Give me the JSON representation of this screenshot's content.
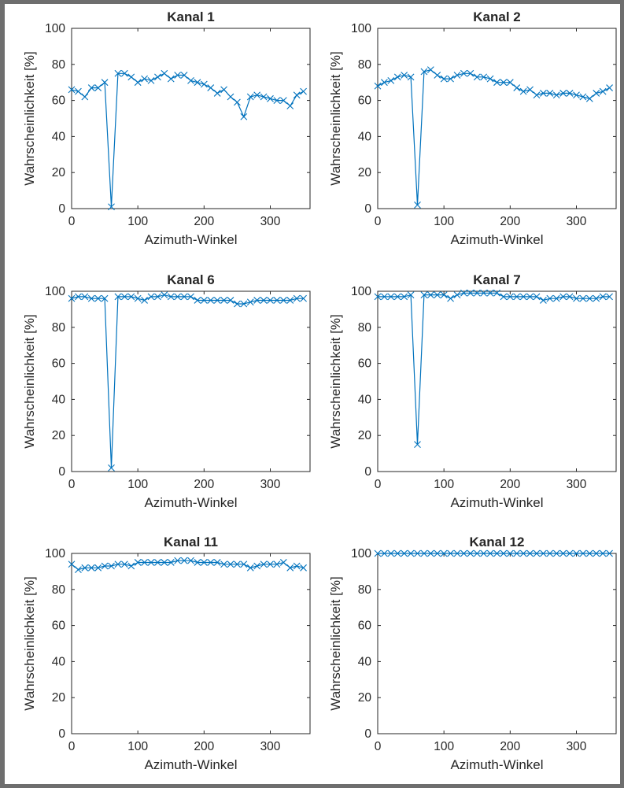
{
  "chart_data": [
    {
      "type": "line",
      "title": "Kanal 1",
      "xlabel": "Azimuth-Winkel",
      "ylabel": "Wahrscheinlichkeit [%]",
      "xlim": [
        0,
        360
      ],
      "ylim": [
        0,
        100
      ],
      "xticks": [
        0,
        100,
        200,
        300
      ],
      "yticks": [
        0,
        20,
        40,
        60,
        80,
        100
      ],
      "grid": false,
      "marker": "x",
      "color": "#0072bd",
      "x": [
        0,
        10,
        20,
        30,
        40,
        50,
        60,
        70,
        80,
        90,
        100,
        110,
        120,
        130,
        140,
        150,
        160,
        170,
        180,
        190,
        200,
        210,
        220,
        230,
        240,
        250,
        260,
        270,
        280,
        290,
        300,
        310,
        320,
        330,
        340,
        350
      ],
      "y": [
        66,
        65,
        62,
        67,
        67,
        70,
        1,
        75,
        75,
        73,
        70,
        72,
        71,
        73,
        75,
        72,
        74,
        74,
        71,
        70,
        69,
        67,
        64,
        66,
        62,
        59,
        51,
        62,
        63,
        62,
        61,
        60,
        60,
        57,
        63,
        65
      ]
    },
    {
      "type": "line",
      "title": "Kanal 2",
      "xlabel": "Azimuth-Winkel",
      "ylabel": "Wahrscheinlichkeit [%]",
      "xlim": [
        0,
        360
      ],
      "ylim": [
        0,
        100
      ],
      "xticks": [
        0,
        100,
        200,
        300
      ],
      "yticks": [
        0,
        20,
        40,
        60,
        80,
        100
      ],
      "grid": false,
      "marker": "x",
      "color": "#0072bd",
      "x": [
        0,
        10,
        20,
        30,
        40,
        50,
        60,
        70,
        80,
        90,
        100,
        110,
        120,
        130,
        140,
        150,
        160,
        170,
        180,
        190,
        200,
        210,
        220,
        230,
        240,
        250,
        260,
        270,
        280,
        290,
        300,
        310,
        320,
        330,
        340,
        350
      ],
      "y": [
        68,
        70,
        71,
        73,
        74,
        73,
        2,
        76,
        77,
        74,
        72,
        72,
        74,
        75,
        75,
        73,
        73,
        72,
        70,
        70,
        70,
        67,
        65,
        66,
        63,
        64,
        64,
        63,
        64,
        64,
        63,
        62,
        61,
        64,
        65,
        67
      ]
    },
    {
      "type": "line",
      "title": "Kanal 6",
      "xlabel": "Azimuth-Winkel",
      "ylabel": "Wahrscheinlichkeit [%]",
      "xlim": [
        0,
        360
      ],
      "ylim": [
        0,
        100
      ],
      "xticks": [
        0,
        100,
        200,
        300
      ],
      "yticks": [
        0,
        20,
        40,
        60,
        80,
        100
      ],
      "grid": false,
      "marker": "x",
      "color": "#0072bd",
      "x": [
        0,
        10,
        20,
        30,
        40,
        50,
        60,
        70,
        80,
        90,
        100,
        110,
        120,
        130,
        140,
        150,
        160,
        170,
        180,
        190,
        200,
        210,
        220,
        230,
        240,
        250,
        260,
        270,
        280,
        290,
        300,
        310,
        320,
        330,
        340,
        350
      ],
      "y": [
        96,
        97,
        97,
        96,
        96,
        96,
        2,
        97,
        97,
        97,
        96,
        95,
        97,
        97,
        98,
        97,
        97,
        97,
        97,
        95,
        95,
        95,
        95,
        95,
        95,
        93,
        93,
        94,
        95,
        95,
        95,
        95,
        95,
        95,
        96,
        96
      ]
    },
    {
      "type": "line",
      "title": "Kanal 7",
      "xlabel": "Azimuth-Winkel",
      "ylabel": "Wahrscheinlichkeit [%]",
      "xlim": [
        0,
        360
      ],
      "ylim": [
        0,
        100
      ],
      "xticks": [
        0,
        100,
        200,
        300
      ],
      "yticks": [
        0,
        20,
        40,
        60,
        80,
        100
      ],
      "grid": false,
      "marker": "x",
      "color": "#0072bd",
      "x": [
        0,
        10,
        20,
        30,
        40,
        50,
        60,
        70,
        80,
        90,
        100,
        110,
        120,
        130,
        140,
        150,
        160,
        170,
        180,
        190,
        200,
        210,
        220,
        230,
        240,
        250,
        260,
        270,
        280,
        290,
        300,
        310,
        320,
        330,
        340,
        350
      ],
      "y": [
        97,
        97,
        97,
        97,
        97,
        98,
        15,
        98,
        98,
        98,
        98,
        96,
        98,
        99,
        99,
        99,
        99,
        99,
        99,
        97,
        97,
        97,
        97,
        97,
        97,
        95,
        96,
        96,
        97,
        97,
        96,
        96,
        96,
        96,
        97,
        97
      ]
    },
    {
      "type": "line",
      "title": "Kanal 11",
      "xlabel": "Azimuth-Winkel",
      "ylabel": "Wahrscheinlichkeit [%]",
      "xlim": [
        0,
        360
      ],
      "ylim": [
        0,
        100
      ],
      "xticks": [
        0,
        100,
        200,
        300
      ],
      "yticks": [
        0,
        20,
        40,
        60,
        80,
        100
      ],
      "grid": false,
      "marker": "x",
      "color": "#0072bd",
      "x": [
        0,
        10,
        20,
        30,
        40,
        50,
        60,
        70,
        80,
        90,
        100,
        110,
        120,
        130,
        140,
        150,
        160,
        170,
        180,
        190,
        200,
        210,
        220,
        230,
        240,
        250,
        260,
        270,
        280,
        290,
        300,
        310,
        320,
        330,
        340,
        350
      ],
      "y": [
        94,
        91,
        92,
        92,
        92,
        93,
        93,
        94,
        94,
        93,
        95,
        95,
        95,
        95,
        95,
        95,
        96,
        96,
        96,
        95,
        95,
        95,
        95,
        94,
        94,
        94,
        94,
        92,
        93,
        94,
        94,
        94,
        95,
        92,
        93,
        92
      ]
    },
    {
      "type": "line",
      "title": "Kanal 12",
      "xlabel": "Azimuth-Winkel",
      "ylabel": "Wahrscheinlichkeit [%]",
      "xlim": [
        0,
        360
      ],
      "ylim": [
        0,
        100
      ],
      "xticks": [
        0,
        100,
        200,
        300
      ],
      "yticks": [
        0,
        20,
        40,
        60,
        80,
        100
      ],
      "grid": false,
      "marker": "x",
      "color": "#0072bd",
      "x": [
        0,
        10,
        20,
        30,
        40,
        50,
        60,
        70,
        80,
        90,
        100,
        110,
        120,
        130,
        140,
        150,
        160,
        170,
        180,
        190,
        200,
        210,
        220,
        230,
        240,
        250,
        260,
        270,
        280,
        290,
        300,
        310,
        320,
        330,
        340,
        350
      ],
      "y": [
        100,
        100,
        100,
        100,
        100,
        100,
        100,
        100,
        100,
        100,
        100,
        100,
        100,
        100,
        100,
        100,
        100,
        100,
        100,
        100,
        100,
        100,
        100,
        100,
        100,
        100,
        100,
        100,
        100,
        100,
        100,
        100,
        100,
        100,
        100,
        100
      ]
    }
  ]
}
